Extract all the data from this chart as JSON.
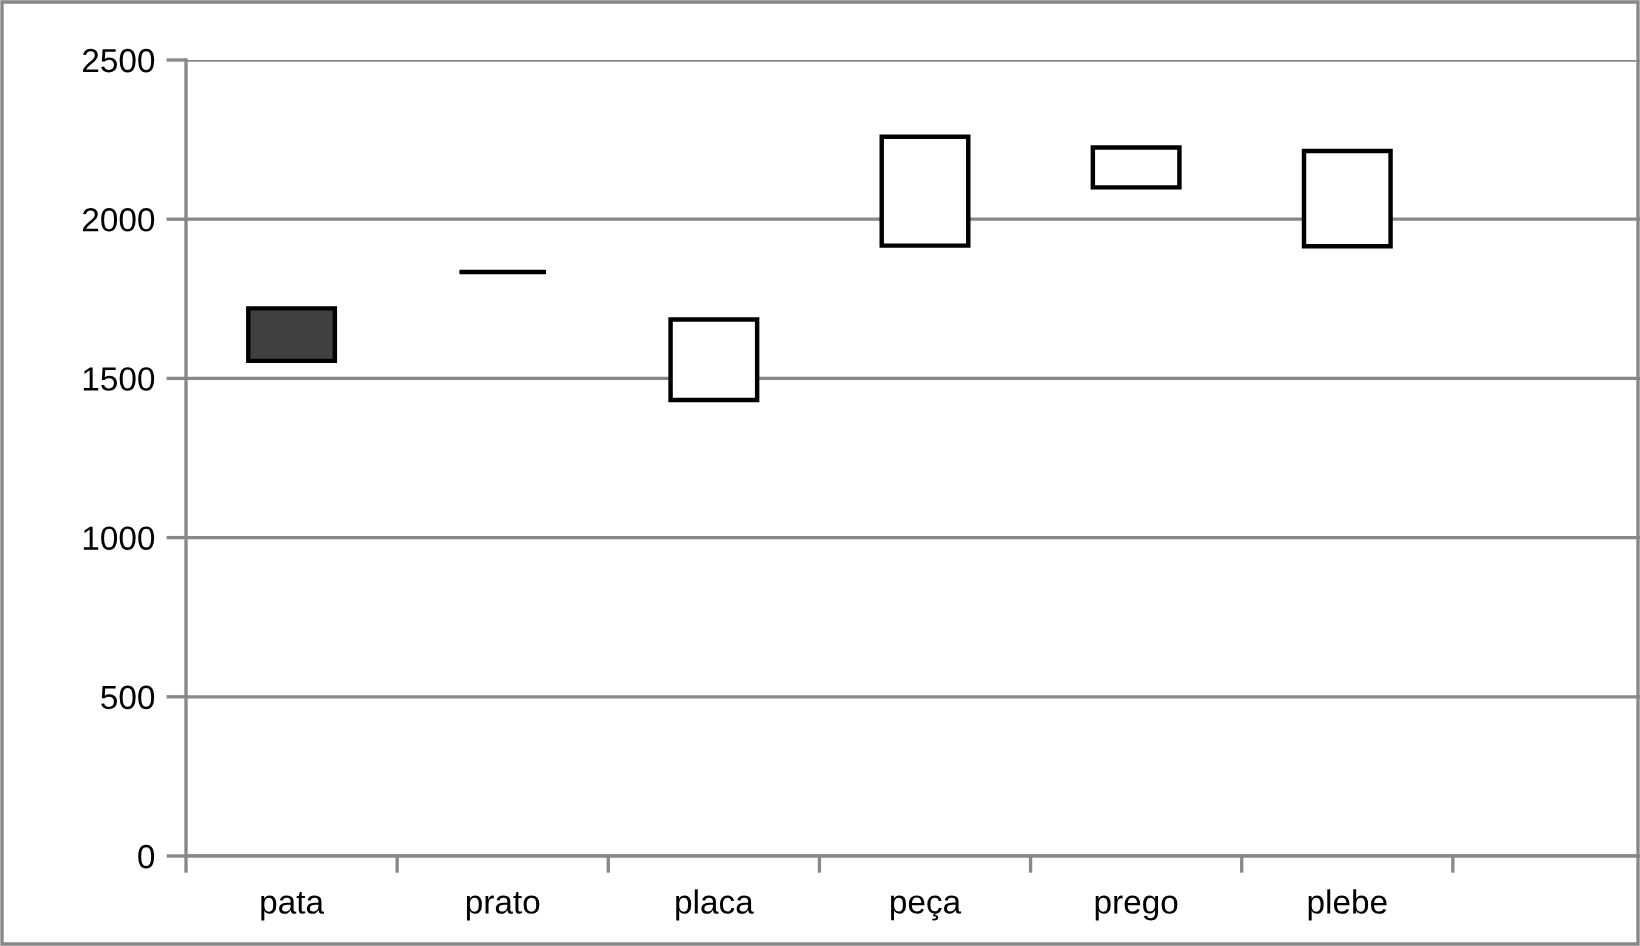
{
  "chart_data": {
    "type": "bar",
    "categories": [
      "pata",
      "prato",
      "placa",
      "peça",
      "prego",
      "plebe",
      null
    ],
    "base": [
      1555,
      1834,
      1432,
      1917,
      2100,
      1915,
      null
    ],
    "values": [
      165,
      0,
      253,
      342,
      125,
      299,
      null
    ],
    "colors": [
      "#404040",
      "#000000",
      "#ffffff",
      "#ffffff",
      "#ffffff",
      "#ffffff",
      "#ffffff"
    ],
    "ylim": [
      0,
      2500
    ],
    "yticks": [
      0,
      500,
      1000,
      1500,
      2000,
      2500
    ],
    "grid": "y"
  }
}
